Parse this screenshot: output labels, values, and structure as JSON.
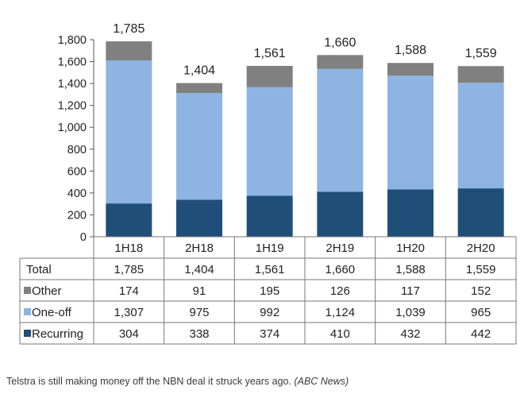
{
  "chart_data": {
    "type": "bar",
    "stacked": true,
    "categories": [
      "1H18",
      "2H18",
      "1H19",
      "2H19",
      "1H20",
      "2H20"
    ],
    "series": [
      {
        "name": "Recurring",
        "color": "#1f4e79",
        "values": [
          304,
          338,
          374,
          410,
          432,
          442
        ]
      },
      {
        "name": "One-off",
        "color": "#8db4e2",
        "values": [
          1307,
          975,
          992,
          1124,
          1039,
          965
        ]
      },
      {
        "name": "Other",
        "color": "#808080",
        "values": [
          174,
          91,
          195,
          126,
          117,
          152
        ]
      }
    ],
    "totals": [
      1785,
      1404,
      1561,
      1660,
      1588,
      1559
    ],
    "total_labels": [
      "1,785",
      "1,404",
      "1,561",
      "1,660",
      "1,588",
      "1,559"
    ],
    "ylim": [
      0,
      1800
    ],
    "yticks": [
      0,
      200,
      400,
      600,
      800,
      1000,
      1200,
      1400,
      1600,
      1800
    ],
    "ytick_labels": [
      "0",
      "200",
      "400",
      "600",
      "800",
      "1,000",
      "1,200",
      "1,400",
      "1,600",
      "1,800"
    ],
    "gridlines": false,
    "data_table": {
      "rows": [
        {
          "label": "Total",
          "key": "total",
          "values": [
            "1,785",
            "1,404",
            "1,561",
            "1,660",
            "1,588",
            "1,559"
          ]
        },
        {
          "label": "Other",
          "key": "other",
          "color": "#808080",
          "values": [
            "174",
            "91",
            "195",
            "126",
            "117",
            "152"
          ]
        },
        {
          "label": "One-off",
          "key": "oneoff",
          "color": "#8db4e2",
          "values": [
            "1,307",
            "975",
            "992",
            "1,124",
            "1,039",
            "965"
          ]
        },
        {
          "label": "Recurring",
          "key": "recurring",
          "color": "#1f4e79",
          "values": [
            "304",
            "338",
            "374",
            "410",
            "432",
            "442"
          ]
        }
      ]
    }
  },
  "caption": {
    "text": "Telstra is still making money off the NBN deal it struck years ago.",
    "credit": "(ABC News)"
  }
}
